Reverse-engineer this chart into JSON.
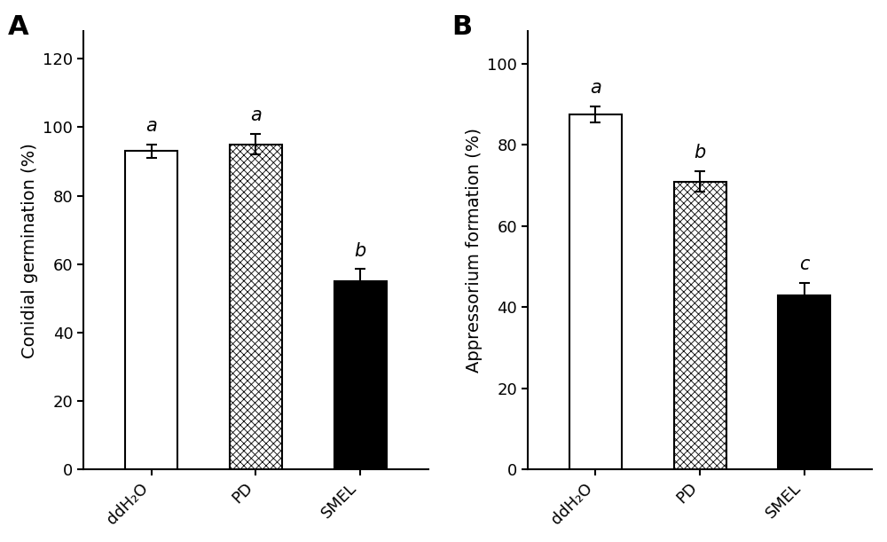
{
  "panel_A": {
    "label": "A",
    "categories": [
      "ddH₂O",
      "PD",
      "SMEL"
    ],
    "values": [
      93.0,
      95.0,
      55.0
    ],
    "errors": [
      2.0,
      3.0,
      3.5
    ],
    "sig_labels": [
      "a",
      "a",
      "b"
    ],
    "ylabel": "Conidial germination (%)",
    "ylim": [
      0,
      128
    ],
    "yticks": [
      0,
      20,
      40,
      60,
      80,
      100,
      120
    ],
    "bar_styles": [
      "white",
      "hatch",
      "black"
    ],
    "hatch_pattern": "xxxx"
  },
  "panel_B": {
    "label": "B",
    "categories": [
      "ddH₂O",
      "PD",
      "SMEL"
    ],
    "values": [
      87.5,
      71.0,
      43.0
    ],
    "errors": [
      2.0,
      2.5,
      3.0
    ],
    "sig_labels": [
      "a",
      "b",
      "c"
    ],
    "ylabel": "Appressorium formation (%)",
    "ylim": [
      0,
      108
    ],
    "yticks": [
      0,
      20,
      40,
      60,
      80,
      100
    ],
    "bar_styles": [
      "white",
      "hatch",
      "black"
    ],
    "hatch_pattern": "xxxx"
  },
  "bar_width": 0.5,
  "tick_label_fontsize": 13,
  "axis_label_fontsize": 14,
  "sig_label_fontsize": 15,
  "panel_label_fontsize": 22,
  "edge_color": "black",
  "background_color": "#ffffff"
}
